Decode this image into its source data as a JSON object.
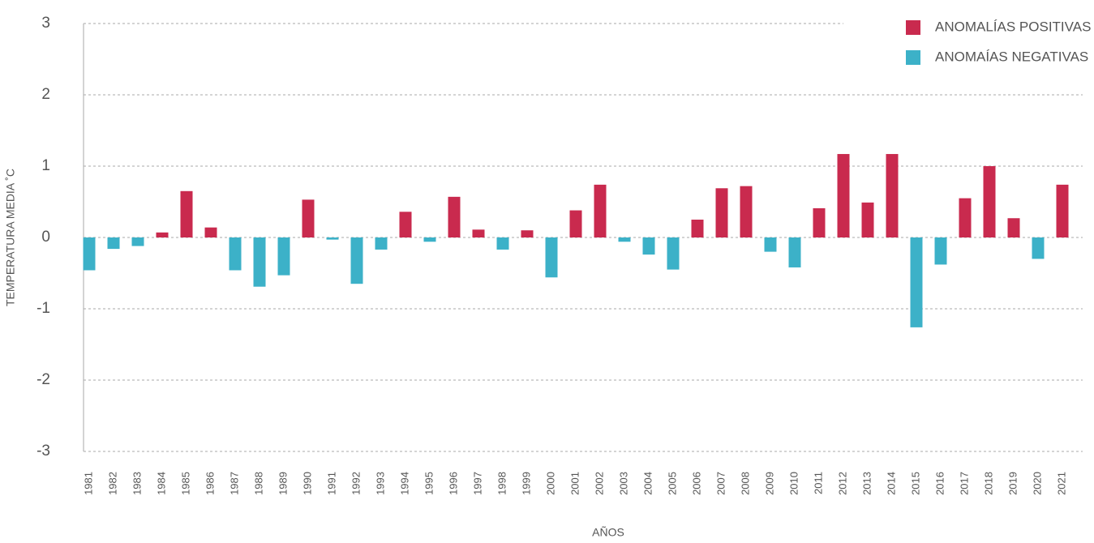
{
  "chart_data": {
    "type": "bar",
    "y_label": "TEMPERATURA MEDIA ˚C",
    "x_label": "AÑOS",
    "categories": [
      "1981",
      "1982",
      "1983",
      "1984",
      "1985",
      "1986",
      "1987",
      "1988",
      "1989",
      "1990",
      "1991",
      "1992",
      "1993",
      "1994",
      "1995",
      "1996",
      "1997",
      "1998",
      "1999",
      "2000",
      "2001",
      "2002",
      "2003",
      "2004",
      "2005",
      "2006",
      "2007",
      "2008",
      "2009",
      "2010",
      "2011",
      "2012",
      "2013",
      "2014",
      "2015",
      "2016",
      "2017",
      "2018",
      "2019",
      "2020",
      "2021"
    ],
    "series": [
      {
        "name": "ANOMALÍAS POSITIVAS",
        "color": "#c92a4e",
        "values": [
          null,
          null,
          null,
          0.07,
          0.65,
          0.14,
          null,
          null,
          null,
          0.53,
          null,
          null,
          null,
          0.36,
          null,
          0.57,
          0.11,
          null,
          0.1,
          null,
          0.38,
          0.74,
          null,
          null,
          null,
          0.25,
          0.69,
          0.72,
          null,
          null,
          0.41,
          1.17,
          0.49,
          1.17,
          null,
          null,
          0.55,
          1.0,
          0.27,
          null,
          0.74
        ]
      },
      {
        "name": "ANOMAÍAS NEGATIVAS",
        "color": "#3cb1c8",
        "values": [
          -0.46,
          -0.16,
          -0.12,
          null,
          null,
          null,
          -0.46,
          -0.69,
          -0.53,
          null,
          -0.03,
          -0.65,
          -0.17,
          null,
          -0.06,
          null,
          null,
          -0.17,
          null,
          -0.56,
          null,
          null,
          -0.06,
          -0.24,
          -0.45,
          null,
          null,
          null,
          -0.2,
          -0.42,
          null,
          null,
          null,
          null,
          -1.26,
          -0.38,
          null,
          null,
          null,
          -0.3,
          null
        ]
      }
    ],
    "ylim": [
      -3,
      3
    ],
    "yticks": [
      -3,
      -2,
      -1,
      0,
      1,
      2,
      3
    ],
    "grid": true,
    "legend": "top-right"
  }
}
